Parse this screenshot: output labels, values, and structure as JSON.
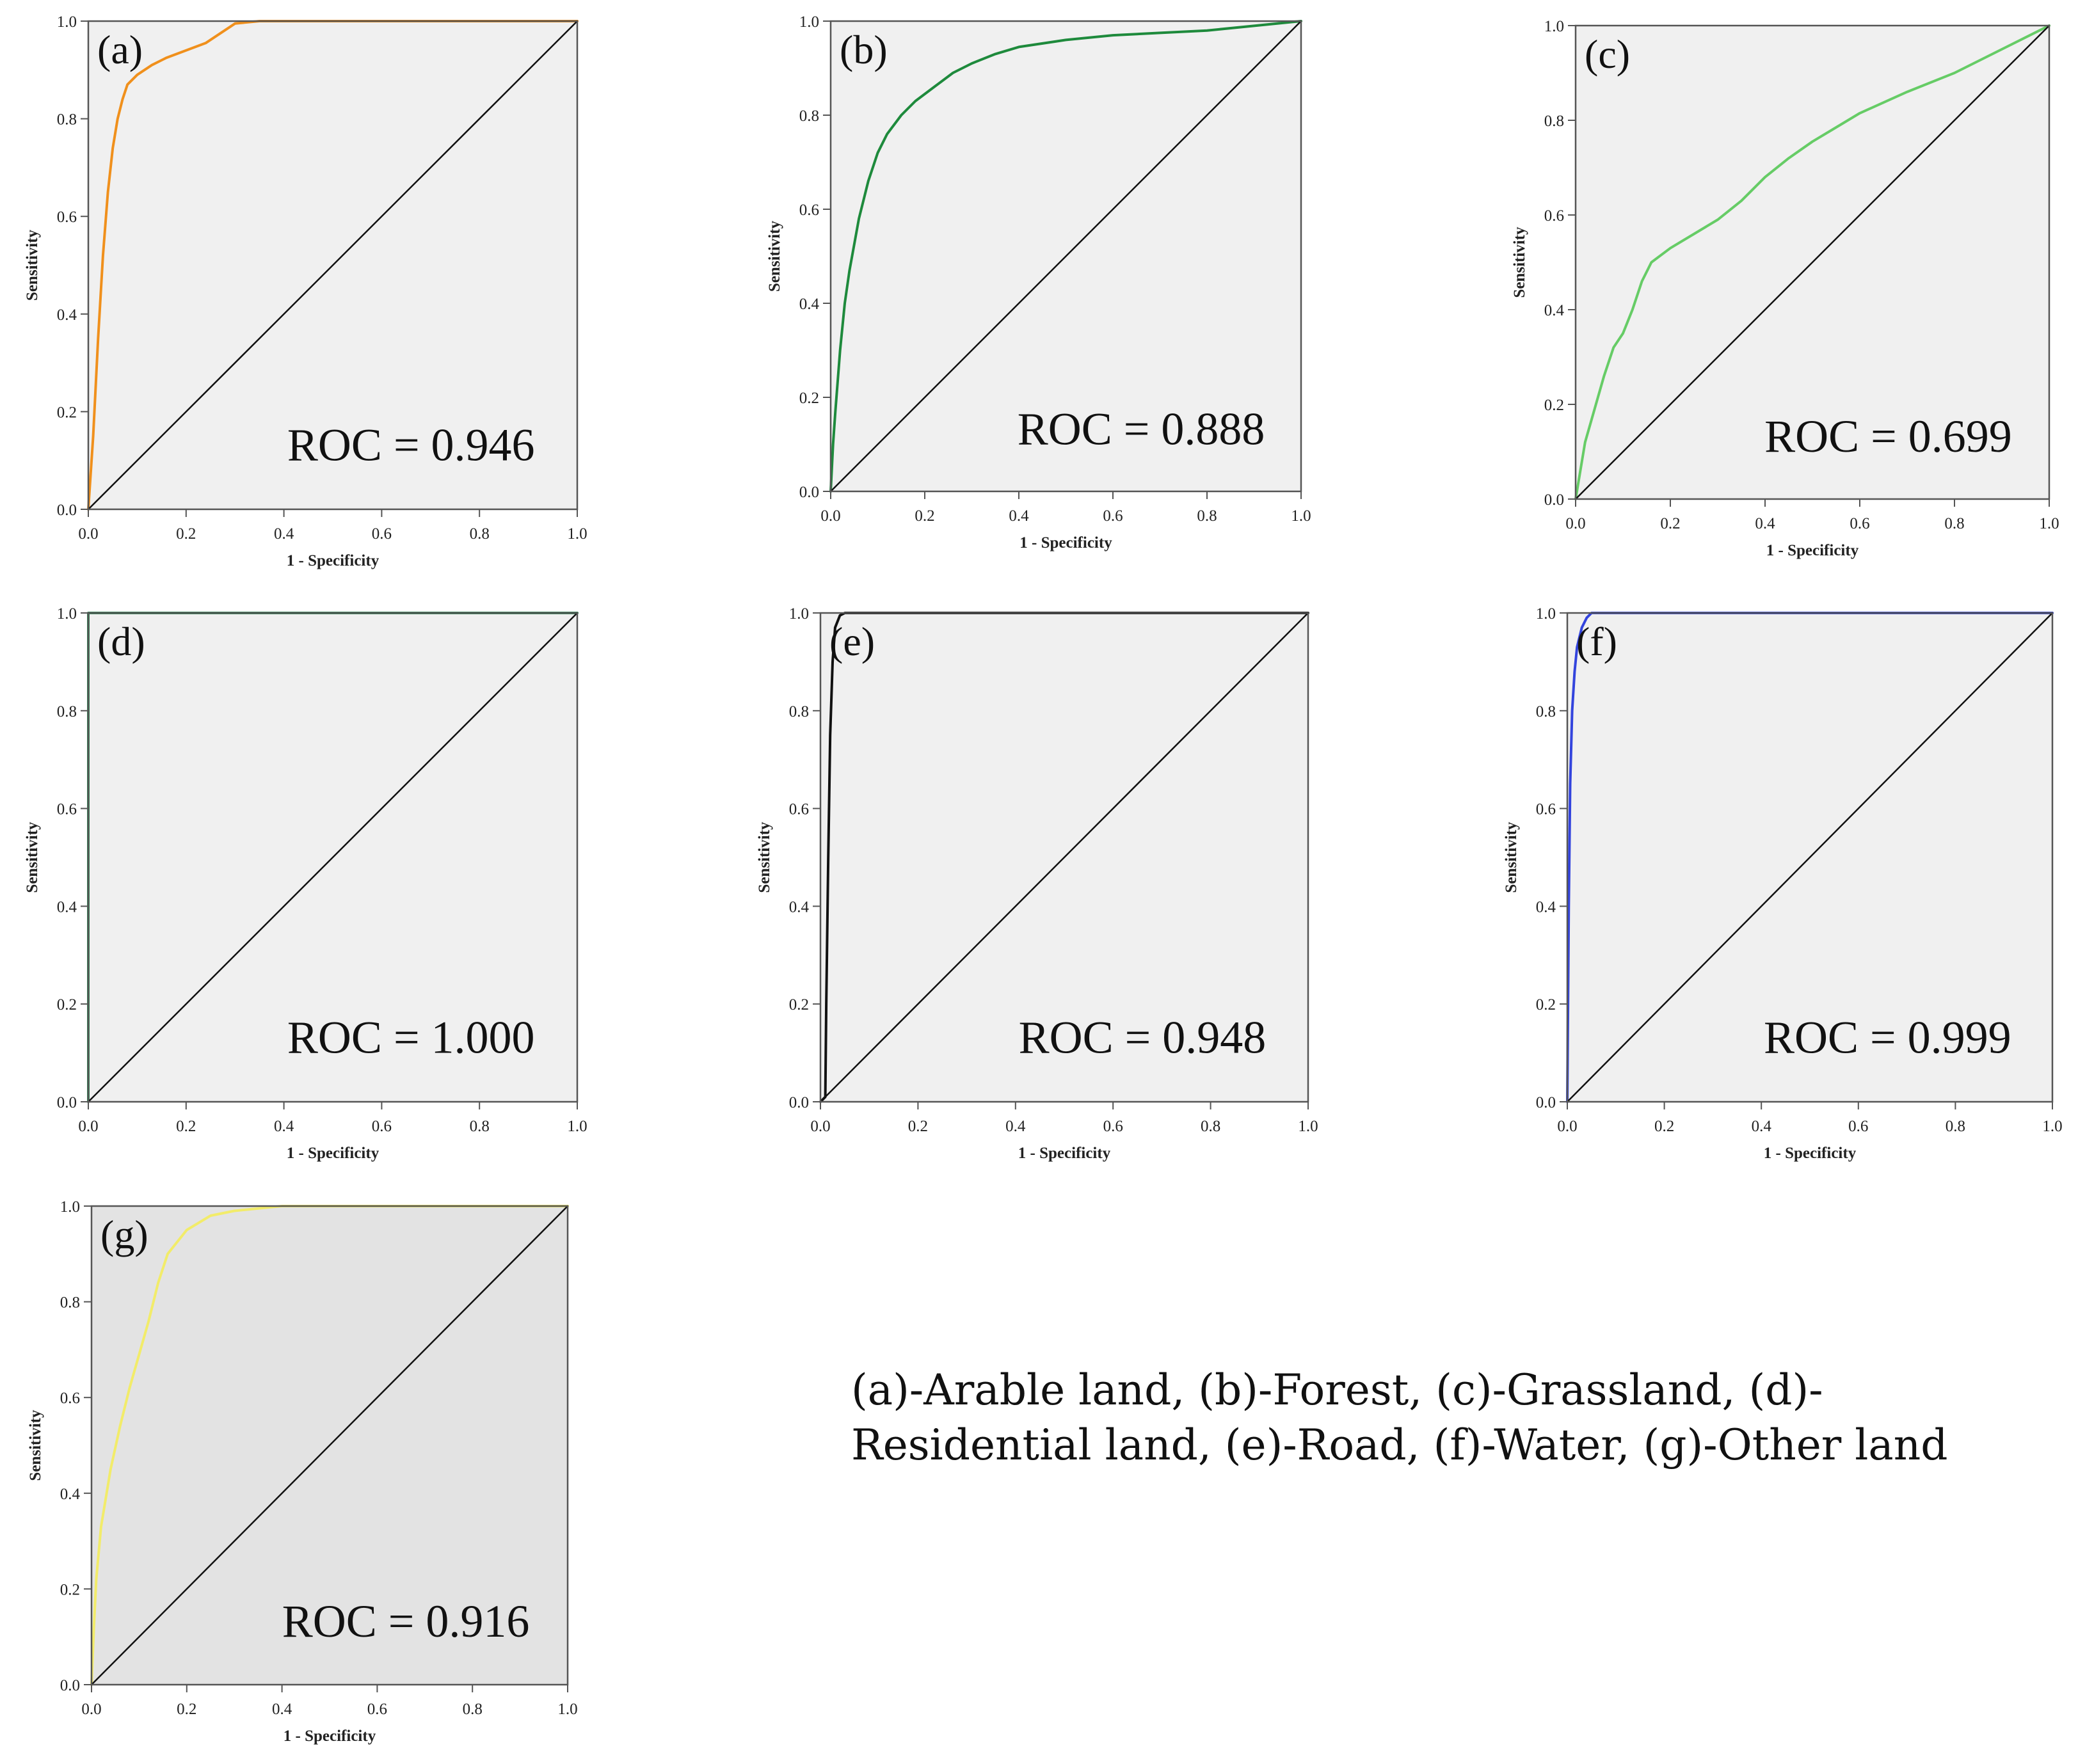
{
  "chart_data": [
    {
      "type": "line",
      "panel_label": "(a)",
      "xlabel": "1 - Specificity",
      "ylabel": "Sensitivity",
      "xlim": [
        0,
        1
      ],
      "ylim": [
        0,
        1
      ],
      "x_ticks": [
        "0.0",
        "0.2",
        "0.4",
        "0.6",
        "0.8",
        "1.0"
      ],
      "y_ticks": [
        "0.0",
        "0.2",
        "0.4",
        "0.6",
        "0.8",
        "1.0"
      ],
      "annotation": "ROC = 0.946",
      "background": "#f0f0f0",
      "curve_color": "#f0901c",
      "series": [
        {
          "x": [
            0,
            0.01,
            0.02,
            0.03,
            0.04,
            0.05,
            0.06,
            0.07,
            0.08,
            0.1,
            0.13,
            0.16,
            0.2,
            0.24,
            0.27,
            0.3,
            0.35,
            0.45,
            0.55,
            0.6,
            0.8,
            1.0
          ],
          "y": [
            0,
            0.15,
            0.35,
            0.52,
            0.65,
            0.74,
            0.8,
            0.84,
            0.87,
            0.89,
            0.91,
            0.925,
            0.94,
            0.955,
            0.975,
            0.995,
            1.0,
            1.0,
            1.0,
            1.0,
            1.0,
            1.0
          ]
        },
        {
          "x": [
            0,
            1
          ],
          "y": [
            0,
            1
          ],
          "color": "#111111"
        }
      ]
    },
    {
      "type": "line",
      "panel_label": "(b)",
      "xlabel": "1 - Specificity",
      "ylabel": "Sensitivity",
      "xlim": [
        0,
        1
      ],
      "ylim": [
        0,
        1
      ],
      "x_ticks": [
        "0.0",
        "0.2",
        "0.4",
        "0.6",
        "0.8",
        "1.0"
      ],
      "y_ticks": [
        "0.0",
        "0.2",
        "0.4",
        "0.6",
        "0.8",
        "1.0"
      ],
      "annotation": "ROC = 0.888",
      "background": "#f0f0f0",
      "curve_color": "#1e8a3c",
      "series": [
        {
          "x": [
            0,
            0.005,
            0.01,
            0.02,
            0.03,
            0.04,
            0.06,
            0.08,
            0.1,
            0.12,
            0.15,
            0.18,
            0.22,
            0.26,
            0.3,
            0.35,
            0.4,
            0.5,
            0.6,
            0.7,
            0.8,
            0.9,
            1.0
          ],
          "y": [
            0,
            0.1,
            0.17,
            0.3,
            0.4,
            0.47,
            0.58,
            0.66,
            0.72,
            0.76,
            0.8,
            0.83,
            0.86,
            0.89,
            0.91,
            0.93,
            0.945,
            0.96,
            0.97,
            0.975,
            0.98,
            0.99,
            1.0
          ]
        },
        {
          "x": [
            0,
            1
          ],
          "y": [
            0,
            1
          ],
          "color": "#111111"
        }
      ]
    },
    {
      "type": "line",
      "panel_label": "(c)",
      "xlabel": "1 - Specificity",
      "ylabel": "Sensitivity",
      "xlim": [
        0,
        1
      ],
      "ylim": [
        0,
        1
      ],
      "x_ticks": [
        "0.0",
        "0.2",
        "0.4",
        "0.6",
        "0.8",
        "1.0"
      ],
      "y_ticks": [
        "0.0",
        "0.2",
        "0.4",
        "0.6",
        "0.8",
        "1.0"
      ],
      "annotation": "ROC = 0.699",
      "background": "#f0f0f0",
      "curve_color": "#66cc66",
      "series": [
        {
          "x": [
            0,
            0.02,
            0.04,
            0.06,
            0.08,
            0.1,
            0.12,
            0.14,
            0.16,
            0.2,
            0.25,
            0.3,
            0.35,
            0.4,
            0.45,
            0.5,
            0.55,
            0.6,
            0.7,
            0.8,
            0.9,
            1.0
          ],
          "y": [
            0,
            0.12,
            0.19,
            0.26,
            0.32,
            0.35,
            0.4,
            0.46,
            0.5,
            0.53,
            0.56,
            0.59,
            0.63,
            0.68,
            0.72,
            0.755,
            0.785,
            0.815,
            0.86,
            0.9,
            0.95,
            1.0
          ]
        },
        {
          "x": [
            0,
            1
          ],
          "y": [
            0,
            1
          ],
          "color": "#111111"
        }
      ]
    },
    {
      "type": "line",
      "panel_label": "(d)",
      "xlabel": "1 - Specificity",
      "ylabel": "Sensitivity",
      "xlim": [
        0,
        1
      ],
      "ylim": [
        0,
        1
      ],
      "x_ticks": [
        "0.0",
        "0.2",
        "0.4",
        "0.6",
        "0.8",
        "1.0"
      ],
      "y_ticks": [
        "0.0",
        "0.2",
        "0.4",
        "0.6",
        "0.8",
        "1.0"
      ],
      "annotation": "ROC = 1.000",
      "background": "#f0f0f0",
      "curve_color": "#2e8b57",
      "series": [
        {
          "x": [
            0,
            0,
            1
          ],
          "y": [
            0,
            1,
            1
          ]
        },
        {
          "x": [
            0,
            1
          ],
          "y": [
            0,
            1
          ],
          "color": "#111111"
        }
      ]
    },
    {
      "type": "line",
      "panel_label": "(e)",
      "xlabel": "1 - Specificity",
      "ylabel": "Sensitivity",
      "xlim": [
        0,
        1
      ],
      "ylim": [
        0,
        1
      ],
      "x_ticks": [
        "0.0",
        "0.2",
        "0.4",
        "0.6",
        "0.8",
        "1.0"
      ],
      "y_ticks": [
        "0.0",
        "0.2",
        "0.4",
        "0.6",
        "0.8",
        "1.0"
      ],
      "annotation": "ROC = 0.948",
      "background": "#f0f0f0",
      "curve_color": "#111111",
      "series": [
        {
          "x": [
            0,
            0.01,
            0.012,
            0.016,
            0.02,
            0.025,
            0.03,
            0.04,
            0.05,
            1.0
          ],
          "y": [
            0,
            0.01,
            0.2,
            0.5,
            0.75,
            0.9,
            0.97,
            0.995,
            1.0,
            1.0
          ]
        },
        {
          "x": [
            0,
            1
          ],
          "y": [
            0,
            1
          ],
          "color": "#111111"
        }
      ]
    },
    {
      "type": "line",
      "panel_label": "(f)",
      "xlabel": "1 - Specificity",
      "ylabel": "Sensitivity",
      "xlim": [
        0,
        1
      ],
      "ylim": [
        0,
        1
      ],
      "x_ticks": [
        "0.0",
        "0.2",
        "0.4",
        "0.6",
        "0.8",
        "1.0"
      ],
      "y_ticks": [
        "0.0",
        "0.2",
        "0.4",
        "0.6",
        "0.8",
        "1.0"
      ],
      "annotation": "ROC = 0.999",
      "background": "#f0f0f0",
      "curve_color": "#3344dd",
      "series": [
        {
          "x": [
            0,
            0.003,
            0.006,
            0.01,
            0.015,
            0.02,
            0.03,
            0.04,
            0.05,
            1.0
          ],
          "y": [
            0,
            0.4,
            0.65,
            0.8,
            0.88,
            0.93,
            0.97,
            0.99,
            1.0,
            1.0
          ]
        },
        {
          "x": [
            0,
            1
          ],
          "y": [
            0,
            1
          ],
          "color": "#111111"
        }
      ]
    },
    {
      "type": "line",
      "panel_label": "(g)",
      "xlabel": "1 - Specificity",
      "ylabel": "Sensitivity",
      "xlim": [
        0,
        1
      ],
      "ylim": [
        0,
        1
      ],
      "x_ticks": [
        "0.0",
        "0.2",
        "0.4",
        "0.6",
        "0.8",
        "1.0"
      ],
      "y_ticks": [
        "0.0",
        "0.2",
        "0.4",
        "0.6",
        "0.8",
        "1.0"
      ],
      "annotation": "ROC = 0.916",
      "background": "#e3e3e3",
      "curve_color": "#f2ec6a",
      "series": [
        {
          "x": [
            0,
            0.005,
            0.01,
            0.02,
            0.04,
            0.06,
            0.08,
            0.1,
            0.12,
            0.14,
            0.16,
            0.2,
            0.25,
            0.3,
            0.35,
            0.4,
            0.5,
            1.0
          ],
          "y": [
            0,
            0.12,
            0.22,
            0.33,
            0.45,
            0.54,
            0.62,
            0.69,
            0.76,
            0.84,
            0.9,
            0.95,
            0.98,
            0.99,
            0.995,
            1.0,
            1.0,
            1.0
          ]
        },
        {
          "x": [
            0,
            1
          ],
          "y": [
            0,
            1
          ],
          "color": "#111111"
        }
      ]
    }
  ],
  "caption": "(a)-Arable land, (b)-Forest, (c)-Grassland, (d)-Residential land, (e)-Road, (f)-Water, (g)-Other land"
}
